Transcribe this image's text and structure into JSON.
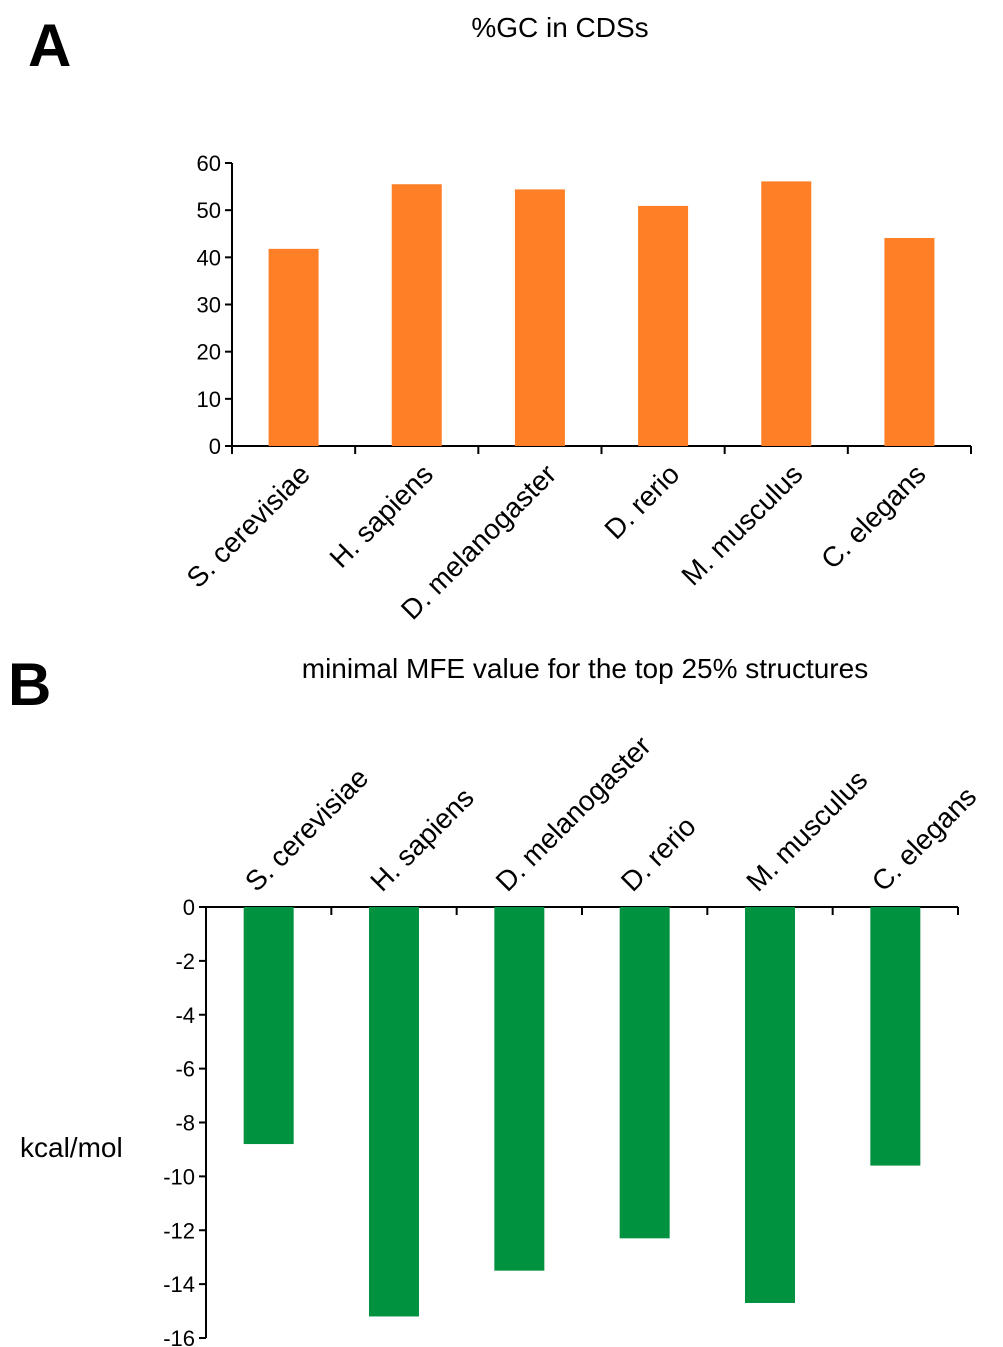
{
  "panels": [
    {
      "letter": "A"
    },
    {
      "letter": "B"
    }
  ],
  "chart_data": [
    {
      "type": "bar",
      "title": "%GC in CDSs",
      "xlabel": "",
      "ylabel": "",
      "categories": [
        "S. cerevisiae",
        "H. sapiens",
        "D. melanogaster",
        "D. rerio",
        "M. musculus",
        "C. elegans"
      ],
      "values": [
        41.8,
        55.5,
        54.4,
        50.9,
        56.1,
        44.1
      ],
      "ylim": [
        0,
        60
      ],
      "yticks": [
        0,
        10,
        20,
        30,
        40,
        50,
        60
      ],
      "ytick_labels": [
        "0",
        "10",
        "20",
        "30",
        "40",
        "50",
        "60"
      ],
      "grid": false,
      "legend": "none",
      "bar_color": "#FF7F27"
    },
    {
      "type": "bar",
      "title": "minimal MFE value for the top 25% structures",
      "xlabel": "",
      "ylabel": "kcal/mol",
      "categories": [
        "S. cerevisiae",
        "H. sapiens",
        "D. melanogaster",
        "D. rerio",
        "M. musculus",
        "C. elegans"
      ],
      "values": [
        -8.8,
        -15.2,
        -13.5,
        -12.3,
        -14.7,
        -9.6
      ],
      "ylim": [
        -16,
        0
      ],
      "yticks": [
        0,
        -2,
        -4,
        -6,
        -8,
        -10,
        -12,
        -14,
        -16
      ],
      "ytick_labels": [
        "0",
        "-2",
        "-4",
        "-6",
        "-8",
        "-10",
        "-12",
        "-14",
        "-16"
      ],
      "grid": false,
      "legend": "none",
      "bar_color": "#00923F"
    }
  ]
}
